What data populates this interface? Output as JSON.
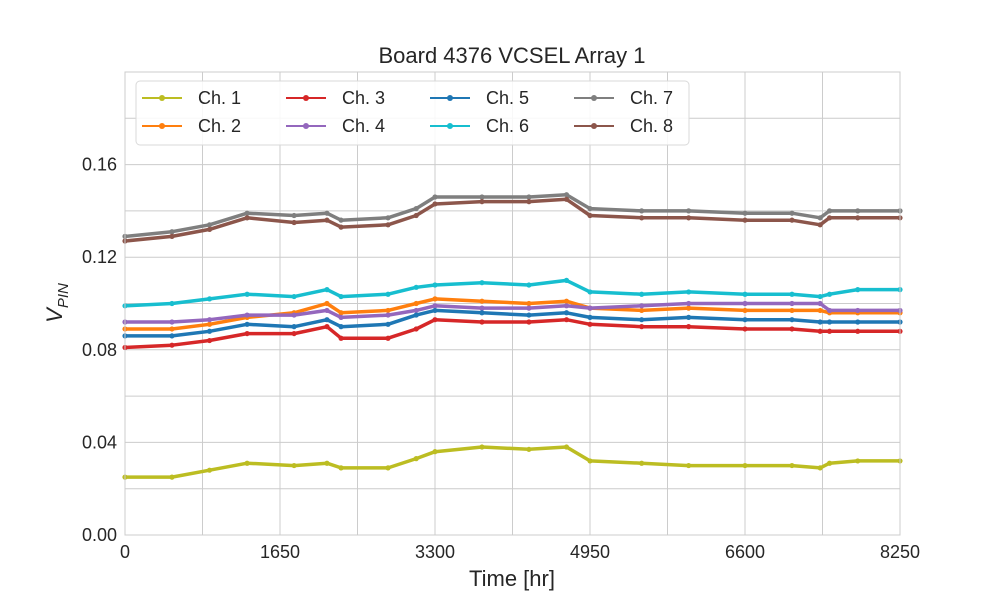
{
  "chart_data": {
    "type": "line",
    "title": "Board 4376 VCSEL Array 1",
    "xlabel": "Time [hr]",
    "ylabel": "V",
    "ylabel_subscript": "PIN",
    "xlim": [
      0,
      8250
    ],
    "ylim": [
      0,
      0.2
    ],
    "xticks": [
      0,
      1650,
      3300,
      4950,
      6600,
      8250
    ],
    "xtick_labels": [
      "0",
      "1650",
      "3300",
      "4950",
      "6600",
      "8250"
    ],
    "yticks": [
      0.0,
      0.04,
      0.08,
      0.12,
      0.16
    ],
    "ytick_labels": [
      "0.00",
      "0.04",
      "0.08",
      "0.12",
      "0.16"
    ],
    "minor_grid_x": [
      825,
      2475,
      4125,
      5775,
      7425
    ],
    "minor_grid_y": [
      0.02,
      0.06,
      0.1,
      0.14,
      0.18
    ],
    "grid": true,
    "legend_position": "top-left",
    "legend_columns": 4,
    "series": [
      {
        "name": "Ch. 1",
        "color": "#bcbd22",
        "x": [
          0,
          500,
          900,
          1300,
          1800,
          2150,
          2300,
          2800,
          3100,
          3300,
          3800,
          4300,
          4700,
          4950,
          5500,
          6000,
          6600,
          7100,
          7400,
          7500,
          7800,
          8250
        ],
        "y": [
          0.025,
          0.025,
          0.028,
          0.031,
          0.03,
          0.031,
          0.029,
          0.029,
          0.033,
          0.036,
          0.038,
          0.037,
          0.038,
          0.032,
          0.031,
          0.03,
          0.03,
          0.03,
          0.029,
          0.031,
          0.032,
          0.032
        ]
      },
      {
        "name": "Ch. 2",
        "color": "#ff7f0e",
        "x": [
          0,
          500,
          900,
          1300,
          1800,
          2150,
          2300,
          2800,
          3100,
          3300,
          3800,
          4300,
          4700,
          4950,
          5500,
          6000,
          6600,
          7100,
          7400,
          7500,
          7800,
          8250
        ],
        "y": [
          0.089,
          0.089,
          0.091,
          0.094,
          0.096,
          0.1,
          0.096,
          0.097,
          0.1,
          0.102,
          0.101,
          0.1,
          0.101,
          0.098,
          0.097,
          0.098,
          0.097,
          0.097,
          0.097,
          0.096,
          0.096,
          0.096
        ]
      },
      {
        "name": "Ch. 3",
        "color": "#d62728",
        "x": [
          0,
          500,
          900,
          1300,
          1800,
          2150,
          2300,
          2800,
          3100,
          3300,
          3800,
          4300,
          4700,
          4950,
          5500,
          6000,
          6600,
          7100,
          7400,
          7500,
          7800,
          8250
        ],
        "y": [
          0.081,
          0.082,
          0.084,
          0.087,
          0.087,
          0.09,
          0.085,
          0.085,
          0.089,
          0.093,
          0.092,
          0.092,
          0.093,
          0.091,
          0.09,
          0.09,
          0.089,
          0.089,
          0.088,
          0.088,
          0.088,
          0.088
        ]
      },
      {
        "name": "Ch. 4",
        "color": "#9467bd",
        "x": [
          0,
          500,
          900,
          1300,
          1800,
          2150,
          2300,
          2800,
          3100,
          3300,
          3800,
          4300,
          4700,
          4950,
          5500,
          6000,
          6600,
          7100,
          7400,
          7500,
          7800,
          8250
        ],
        "y": [
          0.092,
          0.092,
          0.093,
          0.095,
          0.095,
          0.097,
          0.094,
          0.095,
          0.097,
          0.099,
          0.098,
          0.098,
          0.099,
          0.098,
          0.099,
          0.1,
          0.1,
          0.1,
          0.1,
          0.097,
          0.097,
          0.097
        ]
      },
      {
        "name": "Ch. 5",
        "color": "#1f77b4",
        "x": [
          0,
          500,
          900,
          1300,
          1800,
          2150,
          2300,
          2800,
          3100,
          3300,
          3800,
          4300,
          4700,
          4950,
          5500,
          6000,
          6600,
          7100,
          7400,
          7500,
          7800,
          8250
        ],
        "y": [
          0.086,
          0.086,
          0.088,
          0.091,
          0.09,
          0.093,
          0.09,
          0.091,
          0.095,
          0.097,
          0.096,
          0.095,
          0.096,
          0.094,
          0.093,
          0.094,
          0.093,
          0.093,
          0.092,
          0.092,
          0.092,
          0.092
        ]
      },
      {
        "name": "Ch. 6",
        "color": "#17becf",
        "x": [
          0,
          500,
          900,
          1300,
          1800,
          2150,
          2300,
          2800,
          3100,
          3300,
          3800,
          4300,
          4700,
          4950,
          5500,
          6000,
          6600,
          7100,
          7400,
          7500,
          7800,
          8250
        ],
        "y": [
          0.099,
          0.1,
          0.102,
          0.104,
          0.103,
          0.106,
          0.103,
          0.104,
          0.107,
          0.108,
          0.109,
          0.108,
          0.11,
          0.105,
          0.104,
          0.105,
          0.104,
          0.104,
          0.103,
          0.104,
          0.106,
          0.106
        ]
      },
      {
        "name": "Ch. 7",
        "color": "#7f7f7f",
        "x": [
          0,
          500,
          900,
          1300,
          1800,
          2150,
          2300,
          2800,
          3100,
          3300,
          3800,
          4300,
          4700,
          4950,
          5500,
          6000,
          6600,
          7100,
          7400,
          7500,
          7800,
          8250
        ],
        "y": [
          0.129,
          0.131,
          0.134,
          0.139,
          0.138,
          0.139,
          0.136,
          0.137,
          0.141,
          0.146,
          0.146,
          0.146,
          0.147,
          0.141,
          0.14,
          0.14,
          0.139,
          0.139,
          0.137,
          0.14,
          0.14,
          0.14
        ]
      },
      {
        "name": "Ch. 8",
        "color": "#8c564b",
        "x": [
          0,
          500,
          900,
          1300,
          1800,
          2150,
          2300,
          2800,
          3100,
          3300,
          3800,
          4300,
          4700,
          4950,
          5500,
          6000,
          6600,
          7100,
          7400,
          7500,
          7800,
          8250
        ],
        "y": [
          0.127,
          0.129,
          0.132,
          0.137,
          0.135,
          0.136,
          0.133,
          0.134,
          0.138,
          0.143,
          0.144,
          0.144,
          0.145,
          0.138,
          0.137,
          0.137,
          0.136,
          0.136,
          0.134,
          0.137,
          0.137,
          0.137
        ]
      }
    ]
  }
}
